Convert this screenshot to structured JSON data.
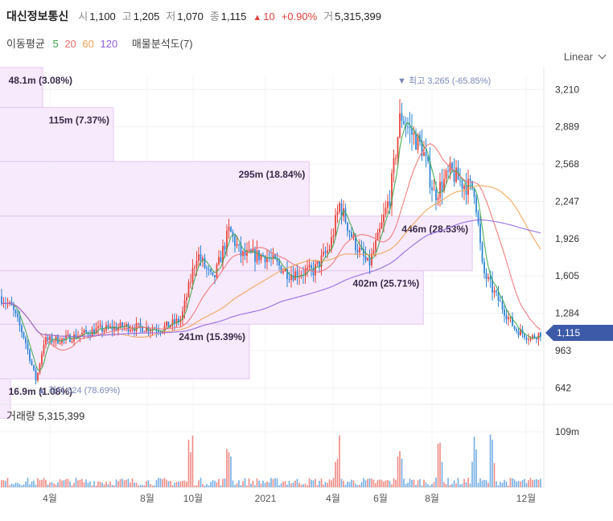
{
  "header": {
    "stock_name": "대신정보통신",
    "open_label": "시",
    "open": "1,100",
    "high_label": "고",
    "high": "1,205",
    "low_label": "저",
    "low": "1,070",
    "close_label": "종",
    "close": "1,115",
    "change": "10",
    "change_pct": "+0.90%",
    "volume_label": "거",
    "volume": "5,315,399"
  },
  "ma_legend": {
    "label": "이동평균",
    "periods": [
      {
        "text": "5",
        "color": "#3aa64a"
      },
      {
        "text": "20",
        "color": "#f07070"
      },
      {
        "text": "60",
        "color": "#f0a050"
      },
      {
        "text": "120",
        "color": "#9060e0"
      }
    ],
    "profile_label": "매물분석도(7)"
  },
  "scale_selector": "Linear",
  "volume_panel": {
    "label": "거래량",
    "value": "5,315,399",
    "axis_tick": "109m"
  },
  "chart_data": {
    "type": "candlestick",
    "price_ticks": [
      "3,210",
      "2,889",
      "2,568",
      "2,247",
      "1,926",
      "1,605",
      "1,284",
      "963",
      "642"
    ],
    "price_tick_values": [
      3210,
      2889,
      2568,
      2247,
      1926,
      1605,
      1284,
      963,
      642
    ],
    "ylim": [
      520,
      3330
    ],
    "current_price_label": "1,115",
    "current_price": 1115,
    "x_ticks": [
      "4월",
      "8월",
      "10월",
      "2021",
      "4월",
      "6월",
      "8월",
      "12월"
    ],
    "annotations": {
      "high": {
        "label": "최고",
        "value": "3,265",
        "pct": "(-65.85%)"
      },
      "low": {
        "label": "최저",
        "value": "624",
        "pct": "(78.69%)"
      }
    },
    "volume_profile": [
      {
        "label": "48.1m (3.08%)",
        "price_low": 3055,
        "price_high": 3400,
        "bar_frac": 0.08
      },
      {
        "label": "115m (7.37%)",
        "price_low": 2590,
        "price_high": 3055,
        "bar_frac": 0.21
      },
      {
        "label": "295m (18.84%)",
        "price_low": 2120,
        "price_high": 2590,
        "bar_frac": 0.57
      },
      {
        "label": "446m (28.53%)",
        "price_low": 1650,
        "price_high": 2120,
        "bar_frac": 0.87
      },
      {
        "label": "402m (25.71%)",
        "price_low": 1190,
        "price_high": 1650,
        "bar_frac": 0.78
      },
      {
        "label": "241m (15.39%)",
        "price_low": 720,
        "price_high": 1190,
        "bar_frac": 0.46
      },
      {
        "label": "16.9m (1.08%)",
        "price_low": 380,
        "price_high": 720,
        "bar_frac": 0.02
      }
    ]
  }
}
